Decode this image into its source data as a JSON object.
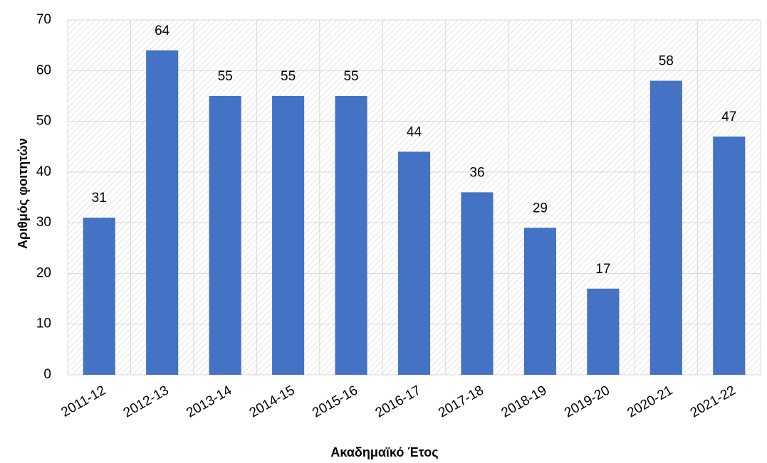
{
  "chart_data": {
    "type": "bar",
    "x_label": "Ακαδημαϊκό Έτος",
    "y_label": "Αριθμός φοιτητών",
    "categories": [
      "2011-12",
      "2012-13",
      "2013-14",
      "2014-15",
      "2015-16",
      "2016-17",
      "2017-18",
      "2018-19",
      "2019-20",
      "2020-21",
      "2021-22"
    ],
    "values": [
      31,
      64,
      55,
      55,
      55,
      44,
      36,
      29,
      17,
      58,
      47
    ],
    "color": "#4472c4",
    "ylim": [
      0,
      70
    ],
    "yticks": [
      0,
      10,
      20,
      30,
      40,
      50,
      60,
      70
    ],
    "grid": true,
    "data_labels": true
  }
}
